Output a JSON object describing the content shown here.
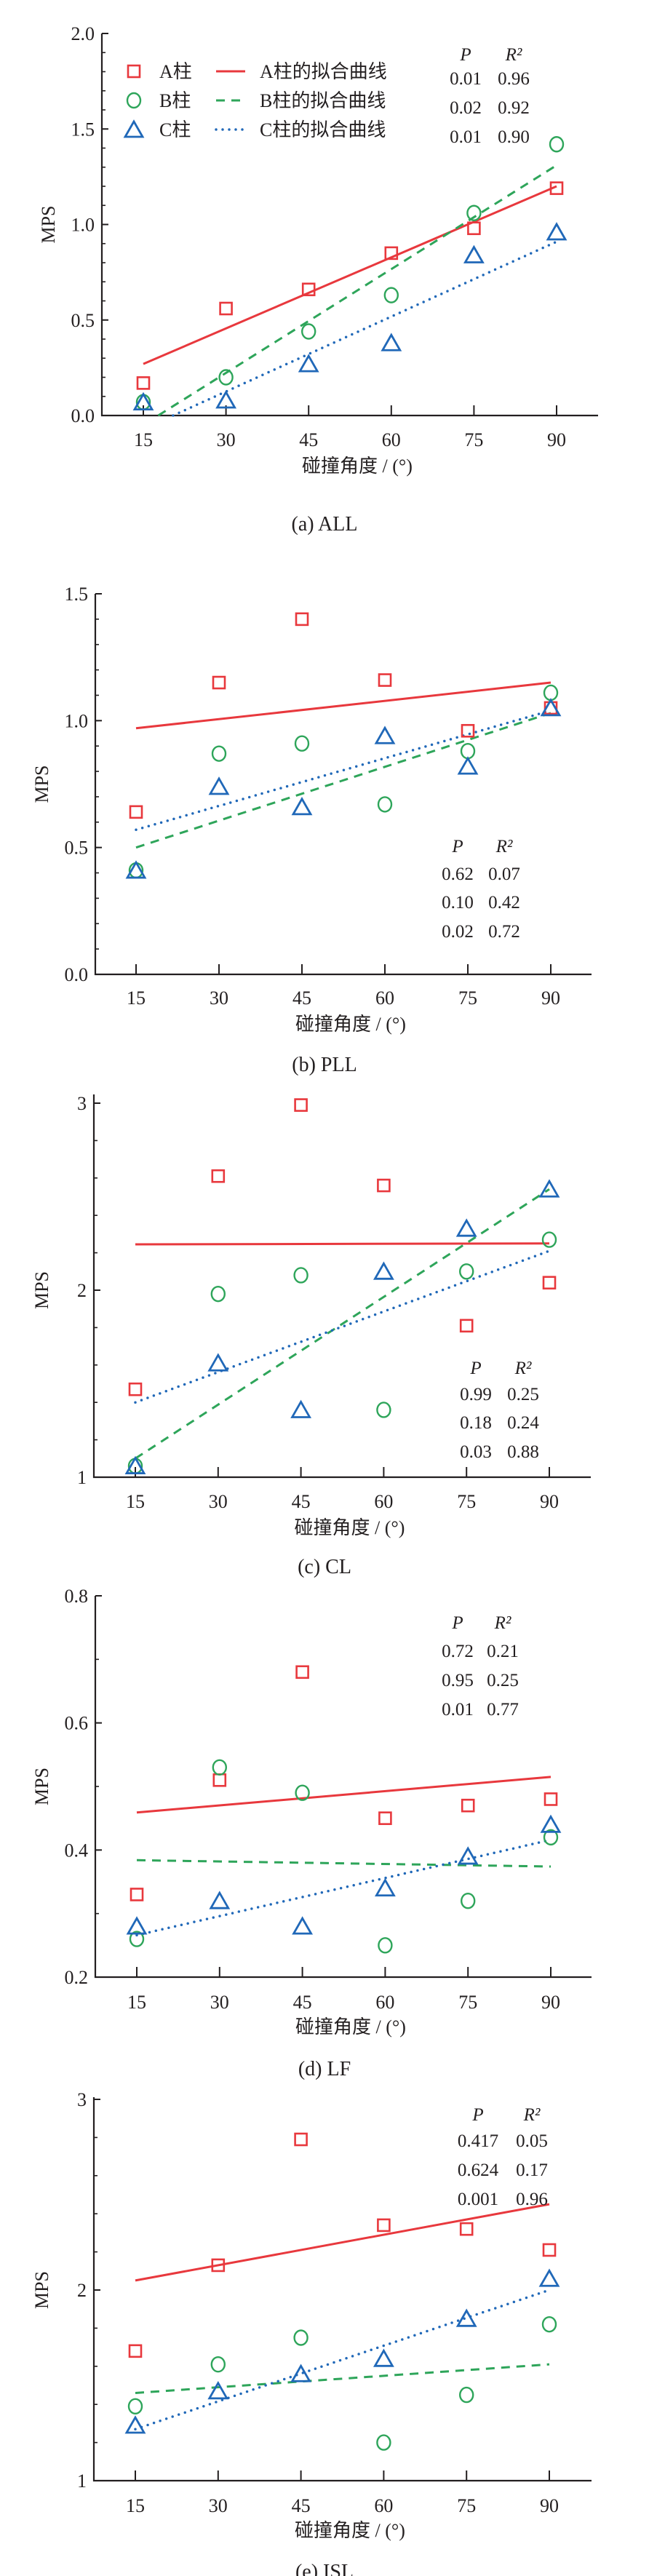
{
  "colors": {
    "A": "#e8383d",
    "B": "#2ea55a",
    "C": "#2068b8",
    "axis": "#231f20"
  },
  "chart_data": [
    {
      "type": "scatter",
      "caption": "(a)  ALL",
      "xlabel": "碰撞角度 / (°)",
      "ylabel": "MPS",
      "x": [
        15,
        30,
        45,
        60,
        75,
        90
      ],
      "xticklabels": [
        "15",
        "30",
        "45",
        "60",
        "75",
        "90"
      ],
      "ylim": [
        0,
        2.0
      ],
      "yticks": [
        0,
        0.5,
        1.0,
        1.5,
        2.0
      ],
      "yticklabels": [
        "0.0",
        "0.5",
        "1.0",
        "1.5",
        "2.0"
      ],
      "yminor_step": 0.1,
      "series": [
        {
          "name": "A柱",
          "fit_name": "A柱的拟合曲线",
          "marker": "square",
          "values": [
            0.17,
            0.56,
            0.66,
            0.85,
            0.98,
            1.19
          ],
          "fit": [
            [
              15,
              0.27
            ],
            [
              90,
              1.2
            ]
          ]
        },
        {
          "name": "B柱",
          "fit_name": "B柱的拟合曲线",
          "marker": "circle",
          "values": [
            0.07,
            0.2,
            0.44,
            0.63,
            1.06,
            1.42
          ],
          "fit": [
            [
              17.7,
              0
            ],
            [
              90,
              1.31
            ]
          ]
        },
        {
          "name": "C柱",
          "fit_name": "C柱的拟合曲线",
          "marker": "triangle",
          "values": [
            0.07,
            0.08,
            0.27,
            0.38,
            0.84,
            0.96
          ],
          "fit": [
            [
              20.4,
              0
            ],
            [
              90,
              0.91
            ]
          ]
        }
      ],
      "legend": "top-left",
      "stats": {
        "placement": "top-right",
        "header": [
          "P",
          "R²"
        ],
        "rows": [
          [
            "0.01",
            "0.96"
          ],
          [
            "0.02",
            "0.92"
          ],
          [
            "0.01",
            "0.90"
          ]
        ]
      }
    },
    {
      "type": "scatter",
      "caption": "(b)  PLL",
      "xlabel": "碰撞角度 / (°)",
      "ylabel": "MPS",
      "x": [
        15,
        30,
        45,
        60,
        75,
        90
      ],
      "xticklabels": [
        "15",
        "30",
        "45",
        "60",
        "75",
        "90"
      ],
      "ylim": [
        0,
        1.5
      ],
      "yticks": [
        0,
        0.5,
        1.0,
        1.5
      ],
      "yticklabels": [
        "0.0",
        "0.5",
        "1.0",
        "1.5"
      ],
      "yminor_step": 0.1,
      "series": [
        {
          "name": "A柱",
          "marker": "square",
          "values": [
            0.64,
            1.15,
            1.4,
            1.16,
            0.96,
            1.05
          ],
          "fit": [
            [
              15,
              0.97
            ],
            [
              90,
              1.15
            ]
          ]
        },
        {
          "name": "B柱",
          "marker": "circle",
          "values": [
            0.41,
            0.87,
            0.91,
            0.67,
            0.88,
            1.11
          ],
          "fit": [
            [
              15,
              0.5
            ],
            [
              90,
              1.03
            ]
          ]
        },
        {
          "name": "C柱",
          "marker": "triangle",
          "values": [
            0.41,
            0.74,
            0.66,
            0.94,
            0.82,
            1.05
          ],
          "fit": [
            [
              15,
              0.57
            ],
            [
              90,
              1.04
            ]
          ]
        }
      ],
      "stats": {
        "placement": "bottom-right",
        "header": [
          "P",
          "R²"
        ],
        "rows": [
          [
            "0.62",
            "0.07"
          ],
          [
            "0.10",
            "0.42"
          ],
          [
            "0.02",
            "0.72"
          ]
        ]
      }
    },
    {
      "type": "scatter",
      "caption": "(c)  CL",
      "xlabel": "碰撞角度 / (°)",
      "ylabel": "MPS",
      "x": [
        15,
        30,
        45,
        60,
        75,
        90
      ],
      "xticklabels": [
        "15",
        "30",
        "45",
        "60",
        "75",
        "90"
      ],
      "ylim": [
        1,
        3
      ],
      "yticks": [
        1,
        2,
        3
      ],
      "yticklabels": [
        "1",
        "2",
        "3"
      ],
      "yminor_step": 0.2,
      "series": [
        {
          "name": "A柱",
          "marker": "square",
          "values": [
            1.47,
            2.61,
            2.99,
            2.56,
            1.81,
            2.04
          ],
          "fit": [
            [
              15,
              2.245
            ],
            [
              90,
              2.25
            ]
          ]
        },
        {
          "name": "B柱",
          "marker": "circle",
          "values": [
            1.06,
            1.98,
            2.08,
            1.36,
            2.1,
            2.27
          ],
          "fit": [
            [
              15,
              1.1
            ],
            [
              90,
              2.54
            ]
          ]
        },
        {
          "name": "C柱",
          "marker": "triangle",
          "values": [
            1.06,
            1.61,
            1.36,
            2.1,
            2.33,
            2.54
          ],
          "fit": [
            [
              15,
              1.4
            ],
            [
              90,
              2.21
            ]
          ]
        }
      ],
      "stats": {
        "placement": "bottom-right",
        "header": [
          "P",
          "R²"
        ],
        "rows": [
          [
            "0.99",
            "0.25"
          ],
          [
            "0.18",
            "0.24"
          ],
          [
            "0.03",
            "0.88"
          ]
        ]
      }
    },
    {
      "type": "scatter",
      "caption": "(d)  LF",
      "xlabel": "碰撞角度 / (°)",
      "ylabel": "MPS",
      "x": [
        15,
        30,
        45,
        60,
        75,
        90
      ],
      "xticklabels": [
        "15",
        "30",
        "45",
        "60",
        "75",
        "90"
      ],
      "ylim": [
        0.2,
        0.8
      ],
      "yticks": [
        0.2,
        0.4,
        0.6,
        0.8
      ],
      "yticklabels": [
        "0.2",
        "0.4",
        "0.6",
        "0.8"
      ],
      "yminor_step": 0.1,
      "series": [
        {
          "name": "A柱",
          "marker": "square",
          "values": [
            0.33,
            0.51,
            0.68,
            0.45,
            0.47,
            0.48
          ],
          "fit": [
            [
              15,
              0.459
            ],
            [
              90,
              0.515
            ]
          ]
        },
        {
          "name": "B柱",
          "marker": "circle",
          "values": [
            0.26,
            0.53,
            0.49,
            0.25,
            0.32,
            0.42
          ],
          "fit": [
            [
              15,
              0.384
            ],
            [
              90,
              0.374
            ]
          ]
        },
        {
          "name": "C柱",
          "marker": "triangle",
          "values": [
            0.28,
            0.32,
            0.28,
            0.34,
            0.39,
            0.44
          ],
          "fit": [
            [
              15,
              0.266
            ],
            [
              90,
              0.416
            ]
          ]
        }
      ],
      "stats": {
        "placement": "top-right",
        "header": [
          "P",
          "R²"
        ],
        "rows": [
          [
            "0.72",
            "0.21"
          ],
          [
            "0.95",
            "0.25"
          ],
          [
            "0.01",
            "0.77"
          ]
        ]
      }
    },
    {
      "type": "scatter",
      "caption": "(e)  ISL",
      "xlabel": "碰撞角度 / (°)",
      "ylabel": "MPS",
      "x": [
        15,
        30,
        45,
        60,
        75,
        90
      ],
      "xticklabels": [
        "15",
        "30",
        "45",
        "60",
        "75",
        "90"
      ],
      "ylim": [
        1,
        3
      ],
      "yticks": [
        1,
        2,
        3
      ],
      "yticklabels": [
        "1",
        "2",
        "3"
      ],
      "yminor_step": 0.2,
      "series": [
        {
          "name": "A柱",
          "marker": "square",
          "values": [
            1.68,
            2.13,
            2.79,
            2.34,
            2.32,
            2.21
          ],
          "fit": [
            [
              15,
              2.05
            ],
            [
              90,
              2.45
            ]
          ]
        },
        {
          "name": "B柱",
          "marker": "circle",
          "values": [
            1.39,
            1.61,
            1.75,
            1.2,
            1.45,
            1.82
          ],
          "fit": [
            [
              15,
              1.46
            ],
            [
              90,
              1.61
            ]
          ]
        },
        {
          "name": "C柱",
          "marker": "triangle",
          "values": [
            1.29,
            1.47,
            1.56,
            1.64,
            1.85,
            2.06
          ],
          "fit": [
            [
              15,
              1.27
            ],
            [
              90,
              2.0
            ]
          ]
        }
      ],
      "stats": {
        "placement": "top-right",
        "header": [
          "P",
          "R²"
        ],
        "rows": [
          [
            "0.417",
            "0.05"
          ],
          [
            "0.624",
            "0.17"
          ],
          [
            "0.001",
            "0.96"
          ]
        ]
      }
    }
  ]
}
